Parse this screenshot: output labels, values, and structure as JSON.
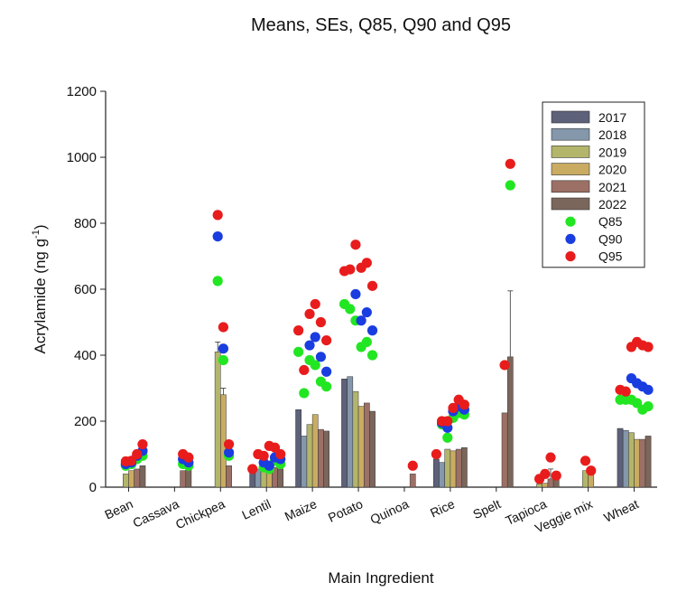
{
  "chart_data": {
    "type": "bar",
    "title": "Means, SEs, Q85, Q90 and Q95",
    "xlabel": "Main Ingredient",
    "ylabel": "Acrylamide (ng g",
    "ylabel_sup": "-1",
    "ylabel_suffix": ")",
    "ylim": [
      0,
      1200
    ],
    "yticks": [
      "0",
      "200",
      "400",
      "600",
      "800",
      "1000",
      "1200"
    ],
    "grid": false,
    "legend_position": "top-right",
    "categories": [
      "Bean",
      "Cassava",
      "Chickpea",
      "Lentil",
      "Maize",
      "Potato",
      "Quinoa",
      "Rice",
      "Spelt",
      "Tapioca",
      "Veggie mix",
      "Wheat"
    ],
    "series": [
      {
        "name": "2017",
        "color": "#5d6179",
        "values": [
          null,
          null,
          null,
          45,
          235,
          328,
          null,
          85,
          null,
          null,
          null,
          178
        ]
      },
      {
        "name": "2018",
        "color": "#8497ab",
        "values": [
          null,
          null,
          null,
          55,
          155,
          335,
          null,
          75,
          null,
          null,
          null,
          172
        ]
      },
      {
        "name": "2019",
        "color": "#b3b56b",
        "values": [
          40,
          null,
          410,
          75,
          190,
          290,
          null,
          115,
          null,
          10,
          50,
          165
        ]
      },
      {
        "name": "2020",
        "color": "#c9ac62",
        "values": [
          50,
          null,
          280,
          65,
          220,
          245,
          null,
          110,
          null,
          12,
          40,
          145
        ]
      },
      {
        "name": "2021",
        "color": "#9c7065",
        "values": [
          55,
          50,
          65,
          60,
          175,
          255,
          40,
          115,
          225,
          25,
          null,
          145
        ]
      },
      {
        "name": "2022",
        "color": "#7b665c",
        "values": [
          65,
          55,
          null,
          55,
          170,
          230,
          null,
          120,
          395,
          30,
          null,
          155
        ]
      }
    ],
    "errors": [
      {
        "category": "Chickpea",
        "series": "2019",
        "value": 410,
        "upper": 440
      },
      {
        "category": "Chickpea",
        "series": "2020",
        "value": 280,
        "upper": 300
      },
      {
        "category": "Spelt",
        "series": "2022",
        "value": 395,
        "upper": 595
      },
      {
        "category": "Tapioca",
        "series": "2021",
        "value": 25,
        "upper": 55
      },
      {
        "category": "Tapioca",
        "series": "2022",
        "value": 30,
        "upper": 45
      }
    ],
    "quantiles": [
      {
        "name": "Q85",
        "color": "#22e622",
        "points": [
          [
            "Bean",
            "2019",
            65
          ],
          [
            "Bean",
            "2020",
            70
          ],
          [
            "Bean",
            "2021",
            85
          ],
          [
            "Bean",
            "2022",
            95
          ],
          [
            "Cassava",
            "2021",
            70
          ],
          [
            "Cassava",
            "2022",
            65
          ],
          [
            "Chickpea",
            "2019",
            625
          ],
          [
            "Chickpea",
            "2020",
            385
          ],
          [
            "Chickpea",
            "2021",
            95
          ],
          [
            "Lentil",
            "2019",
            60
          ],
          [
            "Lentil",
            "2020",
            55
          ],
          [
            "Lentil",
            "2021",
            80
          ],
          [
            "Lentil",
            "2022",
            70
          ],
          [
            "Maize",
            "2017",
            410
          ],
          [
            "Maize",
            "2018",
            285
          ],
          [
            "Maize",
            "2019",
            385
          ],
          [
            "Maize",
            "2020",
            370
          ],
          [
            "Maize",
            "2021",
            320
          ],
          [
            "Maize",
            "2022",
            305
          ],
          [
            "Potato",
            "2017",
            555
          ],
          [
            "Potato",
            "2018",
            540
          ],
          [
            "Potato",
            "2019",
            505
          ],
          [
            "Potato",
            "2020",
            425
          ],
          [
            "Potato",
            "2021",
            440
          ],
          [
            "Potato",
            "2022",
            400
          ],
          [
            "Rice",
            "2018",
            190
          ],
          [
            "Rice",
            "2019",
            150
          ],
          [
            "Rice",
            "2020",
            210
          ],
          [
            "Rice",
            "2021",
            225
          ],
          [
            "Rice",
            "2022",
            220
          ],
          [
            "Spelt",
            "2022",
            915
          ],
          [
            "Wheat",
            "2017",
            265
          ],
          [
            "Wheat",
            "2018",
            265
          ],
          [
            "Wheat",
            "2019",
            265
          ],
          [
            "Wheat",
            "2020",
            255
          ],
          [
            "Wheat",
            "2021",
            235
          ],
          [
            "Wheat",
            "2022",
            245
          ]
        ]
      },
      {
        "name": "Q90",
        "color": "#1a3de0",
        "points": [
          [
            "Bean",
            "2019",
            70
          ],
          [
            "Bean",
            "2020",
            75
          ],
          [
            "Bean",
            "2021",
            95
          ],
          [
            "Bean",
            "2022",
            110
          ],
          [
            "Cassava",
            "2021",
            85
          ],
          [
            "Cassava",
            "2022",
            75
          ],
          [
            "Chickpea",
            "2019",
            760
          ],
          [
            "Chickpea",
            "2020",
            420
          ],
          [
            "Chickpea",
            "2021",
            105
          ],
          [
            "Lentil",
            "2019",
            75
          ],
          [
            "Lentil",
            "2020",
            65
          ],
          [
            "Lentil",
            "2021",
            90
          ],
          [
            "Lentil",
            "2022",
            85
          ],
          [
            "Maize",
            "2019",
            430
          ],
          [
            "Maize",
            "2020",
            455
          ],
          [
            "Maize",
            "2021",
            395
          ],
          [
            "Maize",
            "2022",
            350
          ],
          [
            "Potato",
            "2019",
            585
          ],
          [
            "Potato",
            "2020",
            505
          ],
          [
            "Potato",
            "2021",
            530
          ],
          [
            "Potato",
            "2022",
            475
          ],
          [
            "Rice",
            "2018",
            195
          ],
          [
            "Rice",
            "2019",
            180
          ],
          [
            "Rice",
            "2020",
            230
          ],
          [
            "Rice",
            "2021",
            245
          ],
          [
            "Rice",
            "2022",
            235
          ],
          [
            "Wheat",
            "2019",
            330
          ],
          [
            "Wheat",
            "2020",
            315
          ],
          [
            "Wheat",
            "2021",
            305
          ],
          [
            "Wheat",
            "2022",
            295
          ]
        ]
      },
      {
        "name": "Q95",
        "color": "#e81c1c",
        "points": [
          [
            "Bean",
            "2019",
            78
          ],
          [
            "Bean",
            "2020",
            80
          ],
          [
            "Bean",
            "2021",
            100
          ],
          [
            "Bean",
            "2022",
            130
          ],
          [
            "Cassava",
            "2021",
            100
          ],
          [
            "Cassava",
            "2022",
            90
          ],
          [
            "Chickpea",
            "2019",
            825
          ],
          [
            "Chickpea",
            "2020",
            485
          ],
          [
            "Chickpea",
            "2021",
            130
          ],
          [
            "Lentil",
            "2017",
            55
          ],
          [
            "Lentil",
            "2018",
            100
          ],
          [
            "Lentil",
            "2019",
            95
          ],
          [
            "Lentil",
            "2020",
            125
          ],
          [
            "Lentil",
            "2021",
            120
          ],
          [
            "Lentil",
            "2022",
            100
          ],
          [
            "Maize",
            "2017",
            475
          ],
          [
            "Maize",
            "2018",
            355
          ],
          [
            "Maize",
            "2019",
            525
          ],
          [
            "Maize",
            "2020",
            555
          ],
          [
            "Maize",
            "2021",
            500
          ],
          [
            "Maize",
            "2022",
            445
          ],
          [
            "Potato",
            "2017",
            655
          ],
          [
            "Potato",
            "2018",
            660
          ],
          [
            "Potato",
            "2019",
            735
          ],
          [
            "Potato",
            "2020",
            665
          ],
          [
            "Potato",
            "2021",
            680
          ],
          [
            "Potato",
            "2022",
            610
          ],
          [
            "Quinoa",
            "2021",
            65
          ],
          [
            "Rice",
            "2017",
            100
          ],
          [
            "Rice",
            "2018",
            200
          ],
          [
            "Rice",
            "2019",
            200
          ],
          [
            "Rice",
            "2020",
            240
          ],
          [
            "Rice",
            "2021",
            265
          ],
          [
            "Rice",
            "2022",
            250
          ],
          [
            "Spelt",
            "2021",
            370
          ],
          [
            "Spelt",
            "2022",
            980
          ],
          [
            "Tapioca",
            "2019",
            25
          ],
          [
            "Tapioca",
            "2020",
            40
          ],
          [
            "Tapioca",
            "2021",
            90
          ],
          [
            "Tapioca",
            "2022",
            35
          ],
          [
            "Veggie mix",
            "2019",
            80
          ],
          [
            "Veggie mix",
            "2020",
            50
          ],
          [
            "Wheat",
            "2017",
            295
          ],
          [
            "Wheat",
            "2018",
            290
          ],
          [
            "Wheat",
            "2019",
            425
          ],
          [
            "Wheat",
            "2020",
            440
          ],
          [
            "Wheat",
            "2021",
            430
          ],
          [
            "Wheat",
            "2022",
            425
          ]
        ]
      }
    ]
  }
}
